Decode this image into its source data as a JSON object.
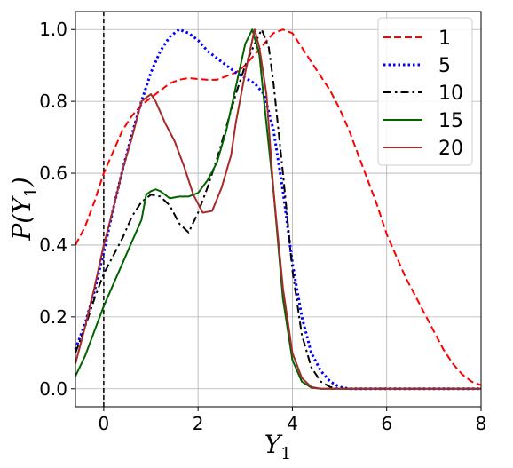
{
  "chart_data": {
    "type": "line",
    "title": "",
    "xlabel": "Y",
    "xlabel_sub": "1",
    "ylabel_prefix": "P(Y",
    "ylabel_sub": "1",
    "ylabel_suffix": ")",
    "xlim": [
      -0.6,
      8
    ],
    "ylim": [
      -0.05,
      1.05
    ],
    "xticks": [
      0,
      2,
      4,
      6,
      8
    ],
    "yticks": [
      0.0,
      0.2,
      0.4,
      0.6,
      0.8,
      1.0
    ],
    "xtick_labels": [
      "0",
      "2",
      "4",
      "6",
      "8"
    ],
    "ytick_labels": [
      "0.0",
      "0.2",
      "0.4",
      "0.6",
      "0.8",
      "1.0"
    ],
    "grid": true,
    "legend_position": "top-right",
    "vline_x": 0,
    "vline_color": "#000000",
    "series": [
      {
        "name": "1",
        "color": "#ff0000",
        "dash": "dashed",
        "points": [
          [
            -0.6,
            0.4
          ],
          [
            -0.4,
            0.45
          ],
          [
            -0.2,
            0.52
          ],
          [
            0,
            0.6
          ],
          [
            0.2,
            0.66
          ],
          [
            0.4,
            0.72
          ],
          [
            0.6,
            0.76
          ],
          [
            0.8,
            0.79
          ],
          [
            1.0,
            0.81
          ],
          [
            1.2,
            0.83
          ],
          [
            1.4,
            0.85
          ],
          [
            1.6,
            0.86
          ],
          [
            1.8,
            0.865
          ],
          [
            2.0,
            0.862
          ],
          [
            2.2,
            0.86
          ],
          [
            2.4,
            0.86
          ],
          [
            2.6,
            0.87
          ],
          [
            2.8,
            0.88
          ],
          [
            3.0,
            0.9
          ],
          [
            3.2,
            0.93
          ],
          [
            3.4,
            0.96
          ],
          [
            3.6,
            0.99
          ],
          [
            3.8,
            1.0
          ],
          [
            4.0,
            0.99
          ],
          [
            4.2,
            0.95
          ],
          [
            4.4,
            0.91
          ],
          [
            4.6,
            0.87
          ],
          [
            4.8,
            0.83
          ],
          [
            5.0,
            0.78
          ],
          [
            5.2,
            0.72
          ],
          [
            5.4,
            0.65
          ],
          [
            5.6,
            0.58
          ],
          [
            5.8,
            0.51
          ],
          [
            6.0,
            0.43
          ],
          [
            6.2,
            0.37
          ],
          [
            6.4,
            0.31
          ],
          [
            6.6,
            0.26
          ],
          [
            6.8,
            0.21
          ],
          [
            7.0,
            0.16
          ],
          [
            7.2,
            0.11
          ],
          [
            7.4,
            0.07
          ],
          [
            7.6,
            0.04
          ],
          [
            7.8,
            0.02
          ],
          [
            8.0,
            0.01
          ]
        ]
      },
      {
        "name": "5",
        "color": "#0000ff",
        "dash": "dotted",
        "points": [
          [
            -0.6,
            0.11
          ],
          [
            -0.4,
            0.18
          ],
          [
            -0.2,
            0.27
          ],
          [
            0,
            0.38
          ],
          [
            0.2,
            0.5
          ],
          [
            0.4,
            0.61
          ],
          [
            0.6,
            0.71
          ],
          [
            0.8,
            0.8
          ],
          [
            1.0,
            0.88
          ],
          [
            1.2,
            0.94
          ],
          [
            1.4,
            0.98
          ],
          [
            1.6,
            1.0
          ],
          [
            1.8,
            0.99
          ],
          [
            2.0,
            0.97
          ],
          [
            2.2,
            0.94
          ],
          [
            2.4,
            0.92
          ],
          [
            2.6,
            0.9
          ],
          [
            2.8,
            0.88
          ],
          [
            3.0,
            0.865
          ],
          [
            3.2,
            0.85
          ],
          [
            3.4,
            0.82
          ],
          [
            3.6,
            0.72
          ],
          [
            3.8,
            0.55
          ],
          [
            4.0,
            0.35
          ],
          [
            4.2,
            0.2
          ],
          [
            4.4,
            0.1
          ],
          [
            4.6,
            0.05
          ],
          [
            4.8,
            0.02
          ],
          [
            5.0,
            0.005
          ],
          [
            5.2,
            0.0
          ],
          [
            8.0,
            0.0
          ]
        ]
      },
      {
        "name": "10",
        "color": "#000000",
        "dash": "dashdot",
        "points": [
          [
            -0.6,
            0.1
          ],
          [
            -0.4,
            0.17
          ],
          [
            -0.2,
            0.25
          ],
          [
            0,
            0.32
          ],
          [
            0.2,
            0.37
          ],
          [
            0.4,
            0.42
          ],
          [
            0.6,
            0.48
          ],
          [
            0.8,
            0.52
          ],
          [
            1.0,
            0.54
          ],
          [
            1.2,
            0.535
          ],
          [
            1.4,
            0.51
          ],
          [
            1.6,
            0.46
          ],
          [
            1.8,
            0.435
          ],
          [
            2.0,
            0.49
          ],
          [
            2.2,
            0.56
          ],
          [
            2.4,
            0.64
          ],
          [
            2.6,
            0.73
          ],
          [
            2.8,
            0.82
          ],
          [
            3.0,
            0.9
          ],
          [
            3.2,
            0.96
          ],
          [
            3.35,
            1.0
          ],
          [
            3.5,
            0.95
          ],
          [
            3.6,
            0.85
          ],
          [
            3.8,
            0.6
          ],
          [
            4.0,
            0.33
          ],
          [
            4.2,
            0.15
          ],
          [
            4.4,
            0.06
          ],
          [
            4.6,
            0.02
          ],
          [
            4.8,
            0.005
          ],
          [
            5.0,
            0.0
          ],
          [
            8.0,
            0.0
          ]
        ]
      },
      {
        "name": "15",
        "color": "#006400",
        "dash": "solid",
        "points": [
          [
            -0.6,
            0.035
          ],
          [
            -0.4,
            0.09
          ],
          [
            -0.2,
            0.16
          ],
          [
            0,
            0.23
          ],
          [
            0.2,
            0.29
          ],
          [
            0.4,
            0.35
          ],
          [
            0.6,
            0.41
          ],
          [
            0.8,
            0.47
          ],
          [
            0.9,
            0.54
          ],
          [
            1.0,
            0.55
          ],
          [
            1.1,
            0.555
          ],
          [
            1.2,
            0.55
          ],
          [
            1.4,
            0.53
          ],
          [
            1.6,
            0.535
          ],
          [
            1.8,
            0.535
          ],
          [
            2.0,
            0.545
          ],
          [
            2.2,
            0.58
          ],
          [
            2.4,
            0.63
          ],
          [
            2.6,
            0.72
          ],
          [
            2.8,
            0.84
          ],
          [
            3.0,
            0.96
          ],
          [
            3.15,
            1.0
          ],
          [
            3.3,
            0.93
          ],
          [
            3.4,
            0.8
          ],
          [
            3.6,
            0.55
          ],
          [
            3.8,
            0.25
          ],
          [
            4.0,
            0.08
          ],
          [
            4.2,
            0.02
          ],
          [
            4.4,
            0.003
          ],
          [
            4.6,
            0.0
          ],
          [
            8.0,
            0.0
          ]
        ]
      },
      {
        "name": "20",
        "color": "#a52a2a",
        "dash": "solid",
        "points": [
          [
            -0.6,
            0.07
          ],
          [
            -0.4,
            0.17
          ],
          [
            -0.2,
            0.28
          ],
          [
            0,
            0.4
          ],
          [
            0.2,
            0.5
          ],
          [
            0.4,
            0.61
          ],
          [
            0.6,
            0.7
          ],
          [
            0.8,
            0.8
          ],
          [
            0.9,
            0.81
          ],
          [
            1.0,
            0.82
          ],
          [
            1.1,
            0.8
          ],
          [
            1.2,
            0.77
          ],
          [
            1.3,
            0.74
          ],
          [
            1.5,
            0.69
          ],
          [
            1.7,
            0.62
          ],
          [
            1.9,
            0.54
          ],
          [
            2.1,
            0.49
          ],
          [
            2.3,
            0.495
          ],
          [
            2.5,
            0.56
          ],
          [
            2.7,
            0.65
          ],
          [
            2.8,
            0.74
          ],
          [
            3.0,
            0.88
          ],
          [
            3.2,
            1.0
          ],
          [
            3.3,
            0.95
          ],
          [
            3.45,
            0.82
          ],
          [
            3.6,
            0.55
          ],
          [
            3.8,
            0.28
          ],
          [
            4.0,
            0.1
          ],
          [
            4.2,
            0.03
          ],
          [
            4.4,
            0.005
          ],
          [
            4.6,
            0.0
          ],
          [
            8.0,
            0.0
          ]
        ]
      }
    ]
  }
}
